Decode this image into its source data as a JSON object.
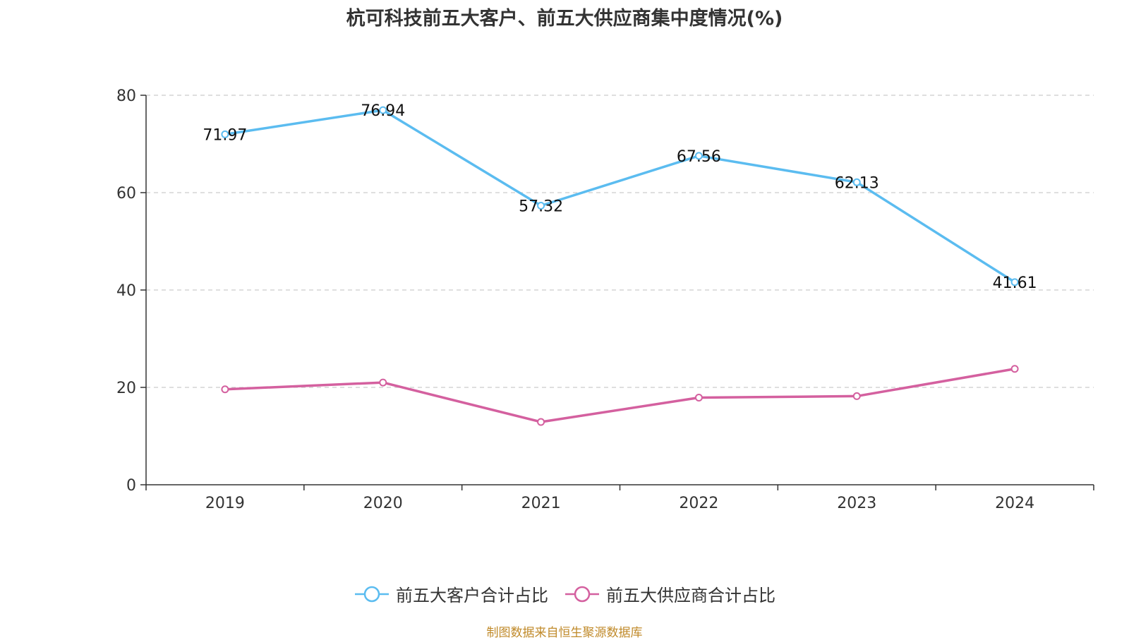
{
  "chart_data": {
    "type": "line",
    "title": "杭可科技前五大客户、前五大供应商集中度情况(%)",
    "categories": [
      "2019",
      "2020",
      "2021",
      "2022",
      "2023",
      "2024"
    ],
    "ylim": [
      0,
      80
    ],
    "yticks": [
      0,
      20,
      40,
      60,
      80
    ],
    "grid": true,
    "xlabel": "",
    "ylabel": "",
    "legend_position": "bottom",
    "series": [
      {
        "name": "前五大客户合计占比",
        "values": [
          71.97,
          76.94,
          57.32,
          67.56,
          62.13,
          41.61
        ],
        "value_labels": [
          "71.97",
          "76.94",
          "57.32",
          "67.56",
          "62.13",
          "41.61"
        ],
        "show_labels": true,
        "color": "#5bbcf0"
      },
      {
        "name": "前五大供应商合计占比",
        "values": [
          19.6,
          21.0,
          12.9,
          17.9,
          18.2,
          23.8
        ],
        "show_labels": false,
        "color": "#d4609f"
      }
    ]
  },
  "source_note": "制图数据来自恒生聚源数据库"
}
